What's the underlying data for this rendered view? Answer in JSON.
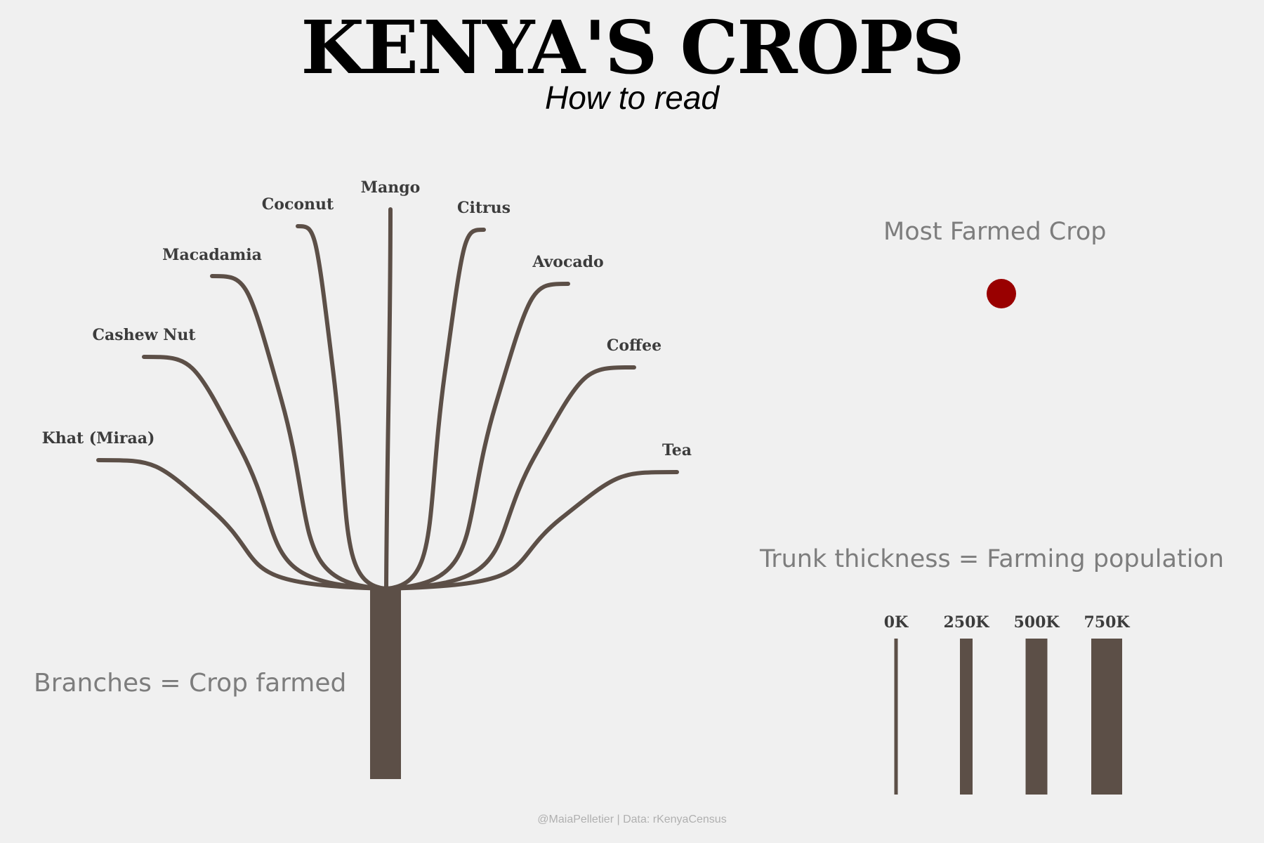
{
  "title": "KENYA'S CROPS",
  "subtitle": "How to read",
  "captions": {
    "branches": "Branches = Crop farmed",
    "most_farmed": "Most Farmed Crop",
    "trunk": "Trunk thickness = Farming population"
  },
  "footer": "@MaiaPelletier | Data: rKenyaCensus",
  "colors": {
    "background": "#f0f0f0",
    "tree": "#5c4f47",
    "most_farmed_dot": "#990000",
    "caption": "#7d7d7d"
  },
  "branches": [
    "Khat (Miraa)",
    "Cashew Nut",
    "Macadamia",
    "Coconut",
    "Mango",
    "Citrus",
    "Avocado",
    "Coffee",
    "Tea"
  ],
  "scale": [
    {
      "label": "0K",
      "value": 0
    },
    {
      "label": "250K",
      "value": 250000
    },
    {
      "label": "500K",
      "value": 500000
    },
    {
      "label": "750K",
      "value": 750000
    }
  ]
}
